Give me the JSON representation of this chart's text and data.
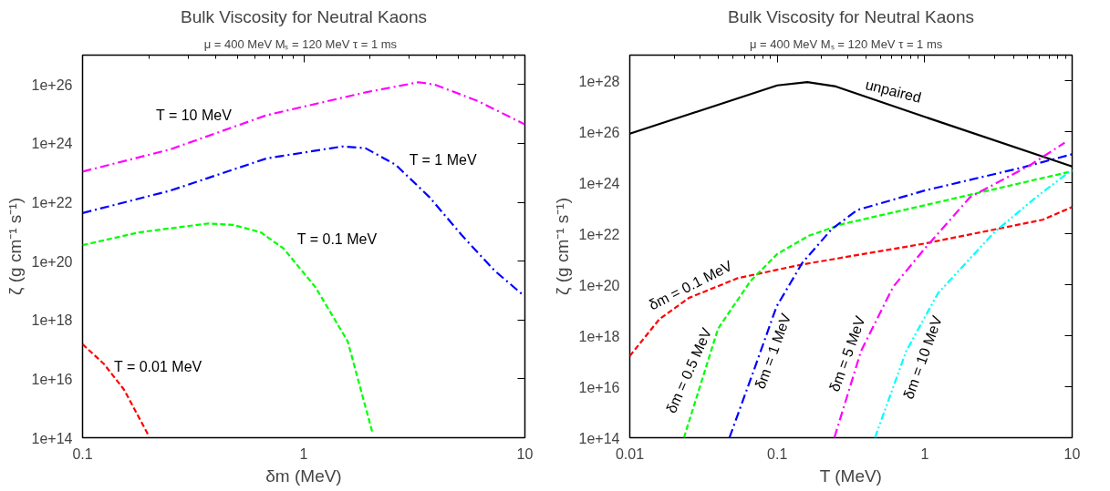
{
  "chart_data": [
    {
      "type": "line",
      "title": "Bulk Viscosity for Neutral Kaons",
      "subtitle": "μ = 400 MeV  Mₛ = 120 MeV  τ = 1 ms",
      "xlabel": "δm (MeV)",
      "ylabel": "ζ (g cm⁻¹ s⁻¹)",
      "log": "xy",
      "xlim": [
        0.1,
        10
      ],
      "ylim": [
        100000000000000.0,
        1e+27
      ],
      "xticks": [
        0.1,
        1,
        10
      ],
      "yticks": [
        {
          "value": 100000000000000.0,
          "label": "1e+14"
        },
        {
          "value": 1e+16,
          "label": "1e+16"
        },
        {
          "value": 1e+18,
          "label": "1e+18"
        },
        {
          "value": 1e+20,
          "label": "1e+20"
        },
        {
          "value": 1e+22,
          "label": "1e+22"
        },
        {
          "value": 1e+24,
          "label": "1e+24"
        },
        {
          "value": 1e+26,
          "label": "1e+26"
        }
      ],
      "series": [
        {
          "name": "T = 10 MeV",
          "color": "#ff00ff",
          "line_style": "dashdot",
          "x": [
            0.1,
            0.25,
            0.68,
            1.9,
            3.3,
            3.9,
            6.1,
            10
          ],
          "values": [
            1.1e+23,
            6.3e+23,
            9.1e+24,
            5.4e+25,
            1.2e+26,
            1e+26,
            2.8e+25,
            4.4e+24
          ]
        },
        {
          "name": "T = 1 MeV",
          "color": "#0000ff",
          "line_style": "dashdot",
          "x": [
            0.1,
            0.25,
            0.68,
            1.5,
            1.9,
            2.6,
            3.7,
            5.2,
            7.3,
            9.8
          ],
          "values": [
            4.3e+21,
            2.5e+22,
            3.1e+23,
            7.9e+23,
            6.9e+23,
            1.9e+23,
            1.5e+22,
            7.4e+20,
            4.7e+19,
            7.1e+18
          ]
        },
        {
          "name": "T = 0.1 MeV",
          "color": "#00ff00",
          "line_style": "dashed",
          "x": [
            0.1,
            0.18,
            0.37,
            0.48,
            0.64,
            0.81,
            1.13,
            1.58,
            2.04
          ],
          "values": [
            3.5e+20,
            9.5e+20,
            1.9e+21,
            1.7e+21,
            9.5e+20,
            2.7e+20,
            1.3e+19,
            1.9e+17,
            160000000000000.0
          ]
        },
        {
          "name": "T = 0.01 MeV",
          "color": "#ff0000",
          "line_style": "dashed",
          "x": [
            0.1,
            0.125,
            0.154,
            0.2
          ],
          "values": [
            1.5e+17,
            3.2e+16,
            4300000000000000.0,
            110000000000000.0
          ]
        }
      ]
    },
    {
      "type": "line",
      "title": "Bulk Viscosity for Neutral Kaons",
      "subtitle": "μ = 400 MeV   Mₛ = 120 MeV  τ = 1 ms",
      "xlabel": "T (MeV)",
      "ylabel": "ζ (g cm⁻¹ s⁻¹)",
      "log": "xy",
      "xlim": [
        0.01,
        10
      ],
      "ylim": [
        100000000000000.0,
        1e+29
      ],
      "xticks": [
        0.01,
        0.1,
        1,
        10
      ],
      "yticks": [
        {
          "value": 100000000000000.0,
          "label": "1e+14"
        },
        {
          "value": 1e+16,
          "label": "1e+16"
        },
        {
          "value": 1e+18,
          "label": "1e+18"
        },
        {
          "value": 1e+20,
          "label": "1e+20"
        },
        {
          "value": 1e+22,
          "label": "1e+22"
        },
        {
          "value": 1e+24,
          "label": "1e+24"
        },
        {
          "value": 1e+26,
          "label": "1e+26"
        },
        {
          "value": 1e+28,
          "label": "1e+28"
        }
      ],
      "series": [
        {
          "name": "unpaired",
          "color": "#000000",
          "line_style": "solid",
          "x": [
            0.01,
            0.1,
            0.16,
            0.25,
            1,
            10
          ],
          "values": [
            8.3e+25,
            6.5e+27,
            8.7e+27,
            5.9e+27,
            3.8e+26,
            4.3e+24
          ]
        },
        {
          "name": "δm = 0.1 MeV",
          "color": "#ff0000",
          "line_style": "dashed",
          "x": [
            0.01,
            0.0159,
            0.0251,
            0.054,
            0.148,
            1,
            6.3,
            10
          ],
          "values": [
            1.6e+17,
            4.5e+18,
            3e+19,
            1.8e+20,
            6.2e+20,
            4.1e+21,
            3.5e+22,
            1.1e+23
          ]
        },
        {
          "name": "δm = 0.5 MeV",
          "color": "#00ff00",
          "line_style": "dashed",
          "x": [
            0.0233,
            0.0397,
            0.066,
            0.1,
            0.164,
            0.27,
            1,
            10
          ],
          "values": [
            100000000000000.0,
            1.9e+18,
            1.4e+20,
            1.6e+21,
            8.3e+21,
            2.3e+22,
            1.3e+23,
            2.8e+24
          ]
        },
        {
          "name": "δm = 1 MeV",
          "color": "#0000ff",
          "line_style": "dashdot",
          "x": [
            0.0474,
            0.0694,
            0.099,
            0.148,
            0.234,
            0.35,
            1,
            4.4,
            10
          ],
          "values": [
            100000000000000.0,
            4.4e+16,
            1.4e+19,
            7.2e+20,
            1.5e+22,
            8.5e+22,
            4.9e+23,
            3.7e+24,
            1.3e+25
          ]
        },
        {
          "name": "δm = 5 MeV",
          "color": "#ff00ff",
          "line_style": "dashdot",
          "x": [
            0.244,
            0.37,
            0.61,
            1,
            2.03,
            5.2,
            8.9
          ],
          "values": [
            100000000000000.0,
            2.5e+17,
            8.1e+19,
            2.6e+21,
            2.7e+23,
            4.9e+24,
            3.7e+25
          ]
        },
        {
          "name": "δm = 10 MeV",
          "color": "#00ffff",
          "line_style": "dashdotdot",
          "x": [
            0.46,
            0.75,
            1.23,
            2.95,
            5.7,
            10
          ],
          "values": [
            100000000000000.0,
            2.5e+17,
            4.6e+19,
            1.1e+22,
            2.7e+23,
            3.2e+24
          ]
        }
      ]
    }
  ]
}
